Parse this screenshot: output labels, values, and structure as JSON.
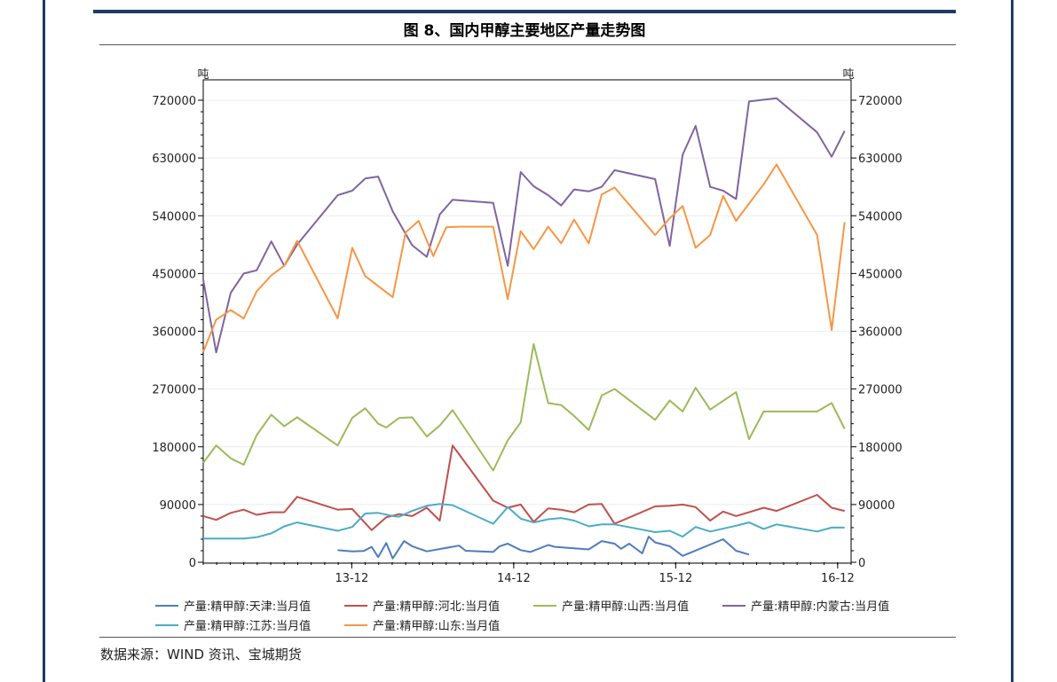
{
  "figure": {
    "title": "图 8、国内甲醇主要地区产量走势图",
    "source": "数据来源：WIND 资讯、宝城期货"
  },
  "chart_data": {
    "type": "line",
    "title": "图 8、国内甲醇主要地区产量走势图",
    "ylabel_left": "吨",
    "ylabel_right": "吨",
    "ylim": [
      0,
      720000
    ],
    "yticks": [
      0,
      90000,
      180000,
      270000,
      360000,
      450000,
      540000,
      630000,
      720000
    ],
    "ytick_labels": [
      "0",
      "90000",
      "180000",
      "270000",
      "360000",
      "450000",
      "540000",
      "630000",
      "720000"
    ],
    "xlim": [
      2013.0,
      2017.0
    ],
    "xticks": [
      {
        "label": "13-12",
        "x": 2013.917
      },
      {
        "label": "14-12",
        "x": 2014.917
      },
      {
        "label": "15-12",
        "x": 2015.917
      },
      {
        "label": "16-12",
        "x": 2016.917
      }
    ],
    "grid": true,
    "legend_position": "bottom",
    "series": [
      {
        "name": "产量:精甲醇:天津:当月值",
        "color": "#4f7cbf",
        "points": [
          [
            2013.83,
            19000
          ],
          [
            2013.92,
            17000
          ],
          [
            2013.99,
            17500
          ],
          [
            2014.04,
            24000
          ],
          [
            2014.08,
            8000
          ],
          [
            2014.13,
            30000
          ],
          [
            2014.17,
            6000
          ],
          [
            2014.24,
            33000
          ],
          [
            2014.29,
            25000
          ],
          [
            2014.38,
            17000
          ],
          [
            2014.58,
            26000
          ],
          [
            2014.62,
            18000
          ],
          [
            2014.79,
            16000
          ],
          [
            2014.83,
            25000
          ],
          [
            2014.88,
            29000
          ],
          [
            2014.96,
            19000
          ],
          [
            2015.02,
            16000
          ],
          [
            2015.13,
            27000
          ],
          [
            2015.17,
            24000
          ],
          [
            2015.38,
            20000
          ],
          [
            2015.46,
            33000
          ],
          [
            2015.54,
            29000
          ],
          [
            2015.58,
            21000
          ],
          [
            2015.63,
            29000
          ],
          [
            2015.71,
            14000
          ],
          [
            2015.75,
            40000
          ],
          [
            2015.79,
            31000
          ],
          [
            2015.88,
            25000
          ],
          [
            2015.96,
            10000
          ],
          [
            2016.21,
            36000
          ],
          [
            2016.29,
            18000
          ],
          [
            2016.37,
            12000
          ]
        ]
      },
      {
        "name": "产量:精甲醇:河北:当月值",
        "color": "#c0504d",
        "points": [
          [
            2013.0,
            72000
          ],
          [
            2013.08,
            66000
          ],
          [
            2013.17,
            77000
          ],
          [
            2013.25,
            82000
          ],
          [
            2013.33,
            74000
          ],
          [
            2013.42,
            78000
          ],
          [
            2013.5,
            78000
          ],
          [
            2013.58,
            102000
          ],
          [
            2013.83,
            82000
          ],
          [
            2013.92,
            83000
          ],
          [
            2014.04,
            50000
          ],
          [
            2014.13,
            70000
          ],
          [
            2014.21,
            75000
          ],
          [
            2014.29,
            72000
          ],
          [
            2014.38,
            85000
          ],
          [
            2014.46,
            65000
          ],
          [
            2014.54,
            182000
          ],
          [
            2014.79,
            96000
          ],
          [
            2014.88,
            85000
          ],
          [
            2014.96,
            90000
          ],
          [
            2015.04,
            63000
          ],
          [
            2015.13,
            84000
          ],
          [
            2015.21,
            82000
          ],
          [
            2015.29,
            78000
          ],
          [
            2015.38,
            90000
          ],
          [
            2015.46,
            91000
          ],
          [
            2015.54,
            60000
          ],
          [
            2015.79,
            87000
          ],
          [
            2015.88,
            88000
          ],
          [
            2015.96,
            90000
          ],
          [
            2016.04,
            86000
          ],
          [
            2016.13,
            65000
          ],
          [
            2016.21,
            79000
          ],
          [
            2016.29,
            72000
          ],
          [
            2016.37,
            78000
          ],
          [
            2016.46,
            85000
          ],
          [
            2016.54,
            80000
          ],
          [
            2016.79,
            105000
          ],
          [
            2016.88,
            85000
          ],
          [
            2016.96,
            80000
          ]
        ]
      },
      {
        "name": "产量:精甲醇:山西:当月值",
        "color": "#9bbb59",
        "points": [
          [
            2013.0,
            155000
          ],
          [
            2013.08,
            182000
          ],
          [
            2013.17,
            162000
          ],
          [
            2013.25,
            152000
          ],
          [
            2013.33,
            198000
          ],
          [
            2013.42,
            230000
          ],
          [
            2013.5,
            212000
          ],
          [
            2013.58,
            226000
          ],
          [
            2013.83,
            182000
          ],
          [
            2013.92,
            225000
          ],
          [
            2014.0,
            240000
          ],
          [
            2014.08,
            216000
          ],
          [
            2014.13,
            210000
          ],
          [
            2014.21,
            225000
          ],
          [
            2014.29,
            226000
          ],
          [
            2014.38,
            196000
          ],
          [
            2014.46,
            213000
          ],
          [
            2014.54,
            237000
          ],
          [
            2014.79,
            143000
          ],
          [
            2014.88,
            190000
          ],
          [
            2014.96,
            218000
          ],
          [
            2015.04,
            340000
          ],
          [
            2015.13,
            248000
          ],
          [
            2015.21,
            245000
          ],
          [
            2015.29,
            228000
          ],
          [
            2015.38,
            206000
          ],
          [
            2015.46,
            260000
          ],
          [
            2015.54,
            270000
          ],
          [
            2015.79,
            222000
          ],
          [
            2015.88,
            252000
          ],
          [
            2015.96,
            235000
          ],
          [
            2016.04,
            272000
          ],
          [
            2016.13,
            238000
          ],
          [
            2016.29,
            265000
          ],
          [
            2016.37,
            192000
          ],
          [
            2016.46,
            235000
          ],
          [
            2016.79,
            235000
          ],
          [
            2016.88,
            248000
          ],
          [
            2016.96,
            208000
          ]
        ]
      },
      {
        "name": "产量:精甲醇:内蒙古:当月值",
        "color": "#8064a2",
        "points": [
          [
            2013.0,
            440000
          ],
          [
            2013.08,
            327000
          ],
          [
            2013.17,
            420000
          ],
          [
            2013.25,
            450000
          ],
          [
            2013.33,
            455000
          ],
          [
            2013.42,
            500000
          ],
          [
            2013.5,
            462000
          ],
          [
            2013.58,
            495000
          ],
          [
            2013.83,
            572000
          ],
          [
            2013.92,
            579000
          ],
          [
            2014.0,
            598000
          ],
          [
            2014.08,
            601000
          ],
          [
            2014.17,
            547000
          ],
          [
            2014.29,
            494000
          ],
          [
            2014.38,
            476000
          ],
          [
            2014.46,
            542000
          ],
          [
            2014.54,
            565000
          ],
          [
            2014.79,
            560000
          ],
          [
            2014.88,
            462000
          ],
          [
            2014.96,
            608000
          ],
          [
            2015.04,
            586000
          ],
          [
            2015.13,
            572000
          ],
          [
            2015.21,
            556000
          ],
          [
            2015.29,
            581000
          ],
          [
            2015.38,
            578000
          ],
          [
            2015.46,
            585000
          ],
          [
            2015.54,
            611000
          ],
          [
            2015.79,
            597000
          ],
          [
            2015.88,
            493000
          ],
          [
            2015.96,
            635000
          ],
          [
            2016.04,
            680000
          ],
          [
            2016.13,
            585000
          ],
          [
            2016.21,
            579000
          ],
          [
            2016.29,
            566000
          ],
          [
            2016.37,
            718000
          ],
          [
            2016.54,
            723000
          ],
          [
            2016.79,
            670000
          ],
          [
            2016.88,
            632000
          ],
          [
            2016.96,
            672000
          ]
        ]
      },
      {
        "name": "产量:精甲醇:江苏:当月值",
        "color": "#4bacc6",
        "points": [
          [
            2013.0,
            37000
          ],
          [
            2013.08,
            37000
          ],
          [
            2013.17,
            37000
          ],
          [
            2013.25,
            37000
          ],
          [
            2013.33,
            39000
          ],
          [
            2013.42,
            45000
          ],
          [
            2013.5,
            56000
          ],
          [
            2013.58,
            62000
          ],
          [
            2013.83,
            49000
          ],
          [
            2013.92,
            55000
          ],
          [
            2014.0,
            76000
          ],
          [
            2014.08,
            77000
          ],
          [
            2014.17,
            72000
          ],
          [
            2014.21,
            71000
          ],
          [
            2014.29,
            80000
          ],
          [
            2014.38,
            88000
          ],
          [
            2014.46,
            91000
          ],
          [
            2014.54,
            89000
          ],
          [
            2014.79,
            60000
          ],
          [
            2014.88,
            86000
          ],
          [
            2014.96,
            68000
          ],
          [
            2015.04,
            62000
          ],
          [
            2015.13,
            67000
          ],
          [
            2015.21,
            69000
          ],
          [
            2015.29,
            65000
          ],
          [
            2015.38,
            56000
          ],
          [
            2015.46,
            59000
          ],
          [
            2015.54,
            59000
          ],
          [
            2015.79,
            47000
          ],
          [
            2015.88,
            49000
          ],
          [
            2015.96,
            40000
          ],
          [
            2016.04,
            55000
          ],
          [
            2016.13,
            48000
          ],
          [
            2016.29,
            57000
          ],
          [
            2016.37,
            62000
          ],
          [
            2016.46,
            52000
          ],
          [
            2016.54,
            59000
          ],
          [
            2016.79,
            48000
          ],
          [
            2016.88,
            54000
          ],
          [
            2016.96,
            54000
          ]
        ]
      },
      {
        "name": "产量:精甲醇:山东:当月值",
        "color": "#f79646",
        "points": [
          [
            2013.0,
            328000
          ],
          [
            2013.08,
            378000
          ],
          [
            2013.17,
            393000
          ],
          [
            2013.25,
            380000
          ],
          [
            2013.33,
            422000
          ],
          [
            2013.42,
            447000
          ],
          [
            2013.5,
            462000
          ],
          [
            2013.58,
            501000
          ],
          [
            2013.83,
            380000
          ],
          [
            2013.92,
            490000
          ],
          [
            2014.0,
            446000
          ],
          [
            2014.17,
            413000
          ],
          [
            2014.25,
            514000
          ],
          [
            2014.33,
            532000
          ],
          [
            2014.42,
            477000
          ],
          [
            2014.5,
            522000
          ],
          [
            2014.58,
            523000
          ],
          [
            2014.79,
            523000
          ],
          [
            2014.88,
            410000
          ],
          [
            2014.96,
            516000
          ],
          [
            2015.04,
            488000
          ],
          [
            2015.13,
            523000
          ],
          [
            2015.21,
            497000
          ],
          [
            2015.29,
            534000
          ],
          [
            2015.38,
            497000
          ],
          [
            2015.46,
            573000
          ],
          [
            2015.54,
            584000
          ],
          [
            2015.79,
            510000
          ],
          [
            2015.88,
            536000
          ],
          [
            2015.96,
            555000
          ],
          [
            2016.04,
            490000
          ],
          [
            2016.13,
            510000
          ],
          [
            2016.21,
            571000
          ],
          [
            2016.29,
            532000
          ],
          [
            2016.37,
            559000
          ],
          [
            2016.46,
            589000
          ],
          [
            2016.54,
            620000
          ],
          [
            2016.79,
            510000
          ],
          [
            2016.88,
            362000
          ],
          [
            2016.96,
            530000
          ]
        ]
      }
    ]
  }
}
